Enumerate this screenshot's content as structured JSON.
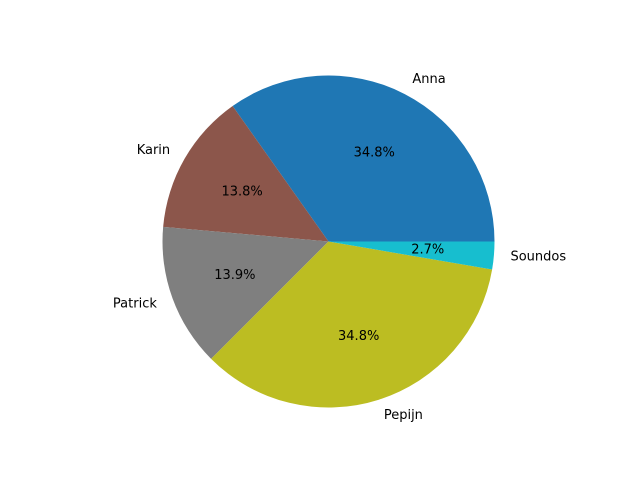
{
  "chart_data": {
    "type": "pie",
    "start_angle_deg": 0,
    "direction": "counterclockwise",
    "legend": "none",
    "slices": [
      {
        "label": "Anna",
        "percent": 34.8,
        "pct_text": "34.8%",
        "color": "#1f77b4"
      },
      {
        "label": "Karin",
        "percent": 13.8,
        "pct_text": "13.8%",
        "color": "#8c564b"
      },
      {
        "label": "Patrick",
        "percent": 13.9,
        "pct_text": "13.9%",
        "color": "#7f7f7f"
      },
      {
        "label": "Pepijn",
        "percent": 34.8,
        "pct_text": "34.8%",
        "color": "#bcbd22"
      },
      {
        "label": "Soundos",
        "percent": 2.7,
        "pct_text": "2.7%",
        "color": "#17becf"
      }
    ]
  }
}
